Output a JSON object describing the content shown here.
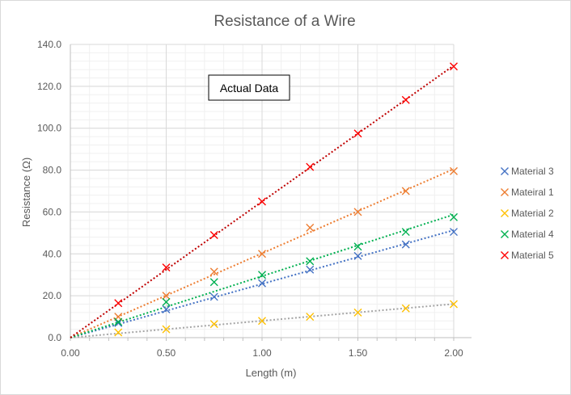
{
  "chart_data": {
    "type": "scatter",
    "title": "Resistance of a Wire",
    "xlabel": "Length (m)",
    "ylabel": "Resistance (Ω)",
    "xlim": [
      0,
      2.0
    ],
    "ylim": [
      0,
      140
    ],
    "x_ticks": [
      "0.00",
      "0.50",
      "1.00",
      "1.50",
      "2.00"
    ],
    "y_ticks": [
      "0.0",
      "20.0",
      "40.0",
      "60.0",
      "80.0",
      "100.0",
      "120.0",
      "140.0"
    ],
    "grid": true,
    "legend_position": "right",
    "annotation": "Actual Data",
    "x": [
      0.25,
      0.5,
      0.75,
      1.0,
      1.25,
      1.5,
      1.75,
      2.0
    ],
    "series": [
      {
        "name": "Material 3",
        "color": "#4472C4",
        "values": [
          7.0,
          13.5,
          19.5,
          26.0,
          32.5,
          39.0,
          44.5,
          50.5
        ]
      },
      {
        "name": "Mateiral 1",
        "color": "#ED7D31",
        "values": [
          10.0,
          20.0,
          31.5,
          40.0,
          52.5,
          60.0,
          70.0,
          79.5
        ]
      },
      {
        "name": "Material 2",
        "color": "#FFC000",
        "values": [
          2.5,
          4.0,
          6.5,
          8.0,
          10.0,
          12.0,
          14.0,
          16.0
        ]
      },
      {
        "name": "Material 4",
        "color": "#00B050",
        "values": [
          7.5,
          17.0,
          26.5,
          30.0,
          36.5,
          43.5,
          50.5,
          57.5
        ]
      },
      {
        "name": "Material 5",
        "color": "#FF0000",
        "values": [
          16.5,
          33.5,
          49.0,
          65.0,
          81.5,
          97.5,
          113.5,
          129.5
        ]
      }
    ],
    "trendline_colors": [
      "#4472C4",
      "#ED7D31",
      "#A5A5A5",
      "#00B050",
      "#C00000"
    ]
  }
}
